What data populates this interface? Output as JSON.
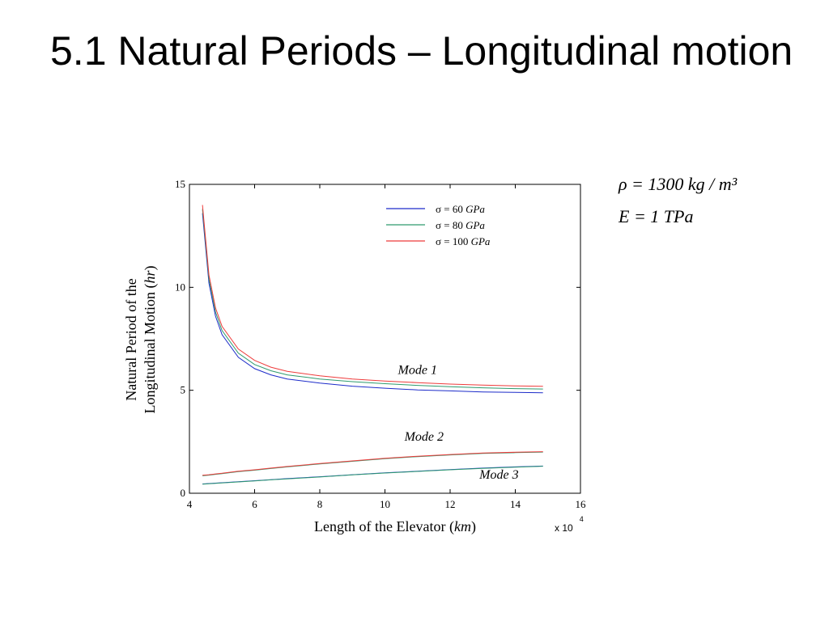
{
  "title": "5.1 Natural Periods – Longitudinal motion",
  "params": {
    "line1": "ρ = 1300 kg / m³",
    "line2": "E = 1 TPa"
  },
  "chart_data": {
    "type": "line",
    "title": "",
    "xlabel_pre": "Length of the Elevator (",
    "xlabel_unit": "km",
    "xlabel_post": ")",
    "ylabel_line1": "Natural  Period of the",
    "ylabel_line2_pre": "Longitudinal Motion (",
    "ylabel_line2_unit": "hr",
    "ylabel_line2_post": ")",
    "x_multiplier": "x 10",
    "x_multiplier_exp": "4",
    "xlim": [
      4,
      16
    ],
    "ylim": [
      0,
      15
    ],
    "xticks": [
      4,
      6,
      8,
      10,
      12,
      14,
      16
    ],
    "yticks": [
      0,
      5,
      10,
      15
    ],
    "grid": false,
    "legend_position": "top-right",
    "colors": {
      "s60": "#1c2bc9",
      "s80": "#2e9a6e",
      "s100": "#ee3b3b"
    },
    "legend": [
      {
        "symbol": "σ = 60 ",
        "unit": "GPa",
        "color": "#1c2bc9"
      },
      {
        "symbol": "σ = 80 ",
        "unit": "GPa",
        "color": "#2e9a6e"
      },
      {
        "symbol": "σ = 100 ",
        "unit": "GPa",
        "color": "#ee3b3b"
      }
    ],
    "annotations": [
      {
        "text": "Mode 1",
        "x": 11.0,
        "y": 5.8
      },
      {
        "text": "Mode 2",
        "x": 11.2,
        "y": 2.55
      },
      {
        "text": "Mode 3",
        "x": 13.5,
        "y": 0.7
      }
    ],
    "x": [
      4.4,
      4.6,
      4.8,
      5.0,
      5.5,
      6.0,
      6.5,
      7.0,
      8.0,
      9.0,
      10.0,
      11.0,
      12.0,
      13.0,
      14.0,
      14.85
    ],
    "series": [
      {
        "key": "m1_s60",
        "color": "#1c2bc9",
        "values": [
          13.6,
          10.2,
          8.6,
          7.7,
          6.6,
          6.05,
          5.75,
          5.55,
          5.35,
          5.2,
          5.1,
          5.02,
          4.97,
          4.92,
          4.9,
          4.88
        ]
      },
      {
        "key": "m1_s80",
        "color": "#2e9a6e",
        "values": [
          13.8,
          10.4,
          8.8,
          7.9,
          6.8,
          6.25,
          5.95,
          5.75,
          5.55,
          5.42,
          5.32,
          5.24,
          5.17,
          5.12,
          5.08,
          5.06
        ]
      },
      {
        "key": "m1_s100",
        "color": "#ee3b3b",
        "values": [
          14.0,
          10.6,
          9.0,
          8.1,
          7.0,
          6.45,
          6.12,
          5.92,
          5.7,
          5.55,
          5.45,
          5.37,
          5.3,
          5.25,
          5.21,
          5.19
        ]
      },
      {
        "key": "m2_s80",
        "color": "#2e9a6e",
        "values": [
          0.85,
          0.88,
          0.92,
          0.95,
          1.05,
          1.12,
          1.2,
          1.28,
          1.42,
          1.55,
          1.68,
          1.78,
          1.86,
          1.93,
          1.97,
          2.0
        ]
      },
      {
        "key": "m2_s100",
        "color": "#ee3b3b",
        "values": [
          0.87,
          0.9,
          0.94,
          0.97,
          1.07,
          1.14,
          1.22,
          1.3,
          1.44,
          1.57,
          1.7,
          1.8,
          1.88,
          1.95,
          1.99,
          2.02
        ]
      },
      {
        "key": "m3_s60",
        "color": "#1c2bc9",
        "values": [
          0.45,
          0.47,
          0.49,
          0.51,
          0.56,
          0.61,
          0.66,
          0.71,
          0.8,
          0.9,
          0.99,
          1.07,
          1.15,
          1.22,
          1.28,
          1.32
        ]
      },
      {
        "key": "m3_s80",
        "color": "#2e9a6e",
        "values": [
          0.44,
          0.46,
          0.48,
          0.5,
          0.55,
          0.6,
          0.65,
          0.7,
          0.79,
          0.89,
          0.98,
          1.06,
          1.14,
          1.21,
          1.27,
          1.31
        ]
      }
    ]
  }
}
